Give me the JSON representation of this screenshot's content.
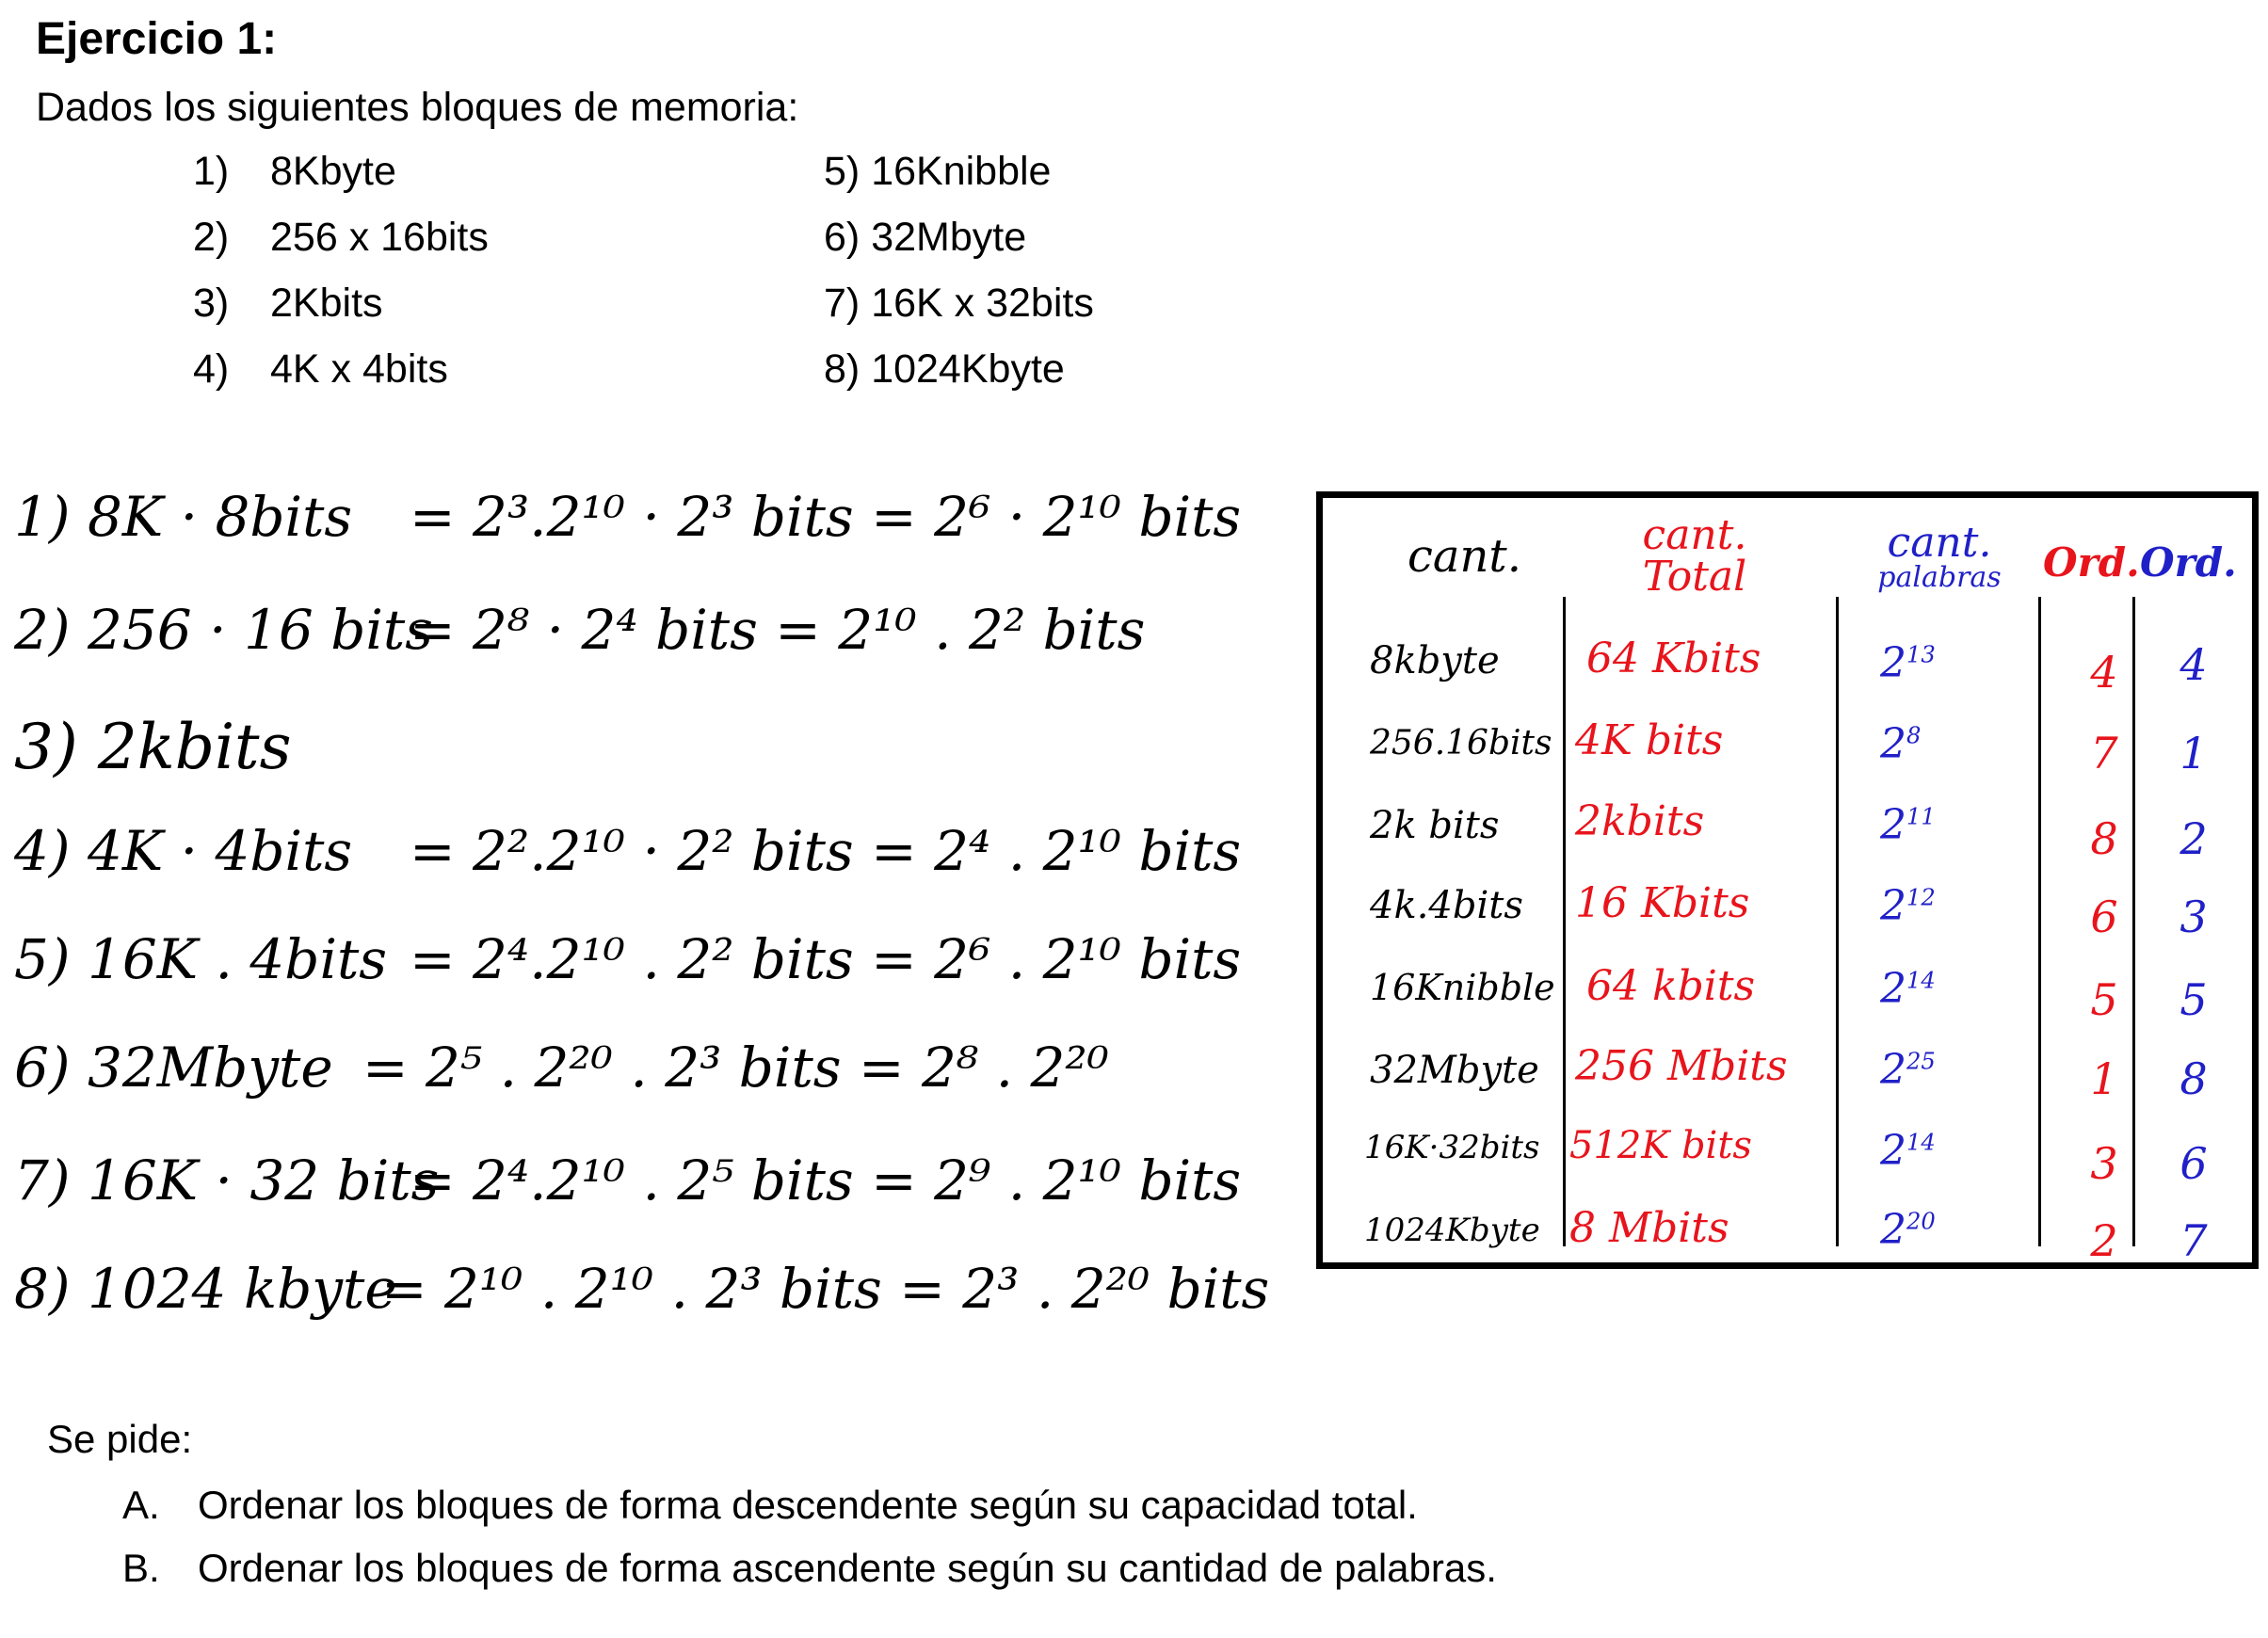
{
  "header": {
    "title": "Ejercicio 1:",
    "intro": "Dados los siguientes bloques de memoria:"
  },
  "blocks": [
    {
      "num": "1)",
      "label": "8Kbyte"
    },
    {
      "num": "2)",
      "label": "256 x 16bits"
    },
    {
      "num": "3)",
      "label": "2Kbits"
    },
    {
      "num": "4)",
      "label": "4K x 4bits"
    },
    {
      "num": "5)",
      "label": "16Knibble"
    },
    {
      "num": "6)",
      "label": "32Mbyte"
    },
    {
      "num": "7)",
      "label": "16K x 32bits"
    },
    {
      "num": "8)",
      "label": "1024Kbyte"
    }
  ],
  "handwritten": [
    {
      "lhs": "1) 8K · 8bits",
      "rhs": "= 2³.2¹⁰ · 2³ bits = 2⁶ · 2¹⁰ bits"
    },
    {
      "lhs": "2) 256 · 16 bits",
      "rhs": "= 2⁸ · 2⁴ bits = 2¹⁰ . 2² bits"
    },
    {
      "lhs": "3) 2kbits",
      "rhs": ""
    },
    {
      "lhs": "4) 4K · 4bits",
      "rhs": "= 2².2¹⁰ · 2² bits = 2⁴ . 2¹⁰ bits"
    },
    {
      "lhs": "5) 16K . 4bits",
      "rhs": "= 2⁴.2¹⁰ . 2² bits = 2⁶ . 2¹⁰ bits"
    },
    {
      "lhs": "6) 32Mbyte",
      "rhs": "= 2⁵ . 2²⁰ . 2³ bits = 2⁸ . 2²⁰"
    },
    {
      "lhs": "7) 16K · 32 bits",
      "rhs": "= 2⁴.2¹⁰ . 2⁵ bits = 2⁹ . 2¹⁰ bits"
    },
    {
      "lhs": "8) 1024 kbyte",
      "rhs": "= 2¹⁰ . 2¹⁰ . 2³ bits = 2³ . 2²⁰ bits"
    }
  ],
  "table": {
    "headers": {
      "cant": "cant.",
      "total_1": "cant.",
      "total_2": "Total",
      "words_1": "cant.",
      "words_2": "palabras",
      "ord1": "Ord.",
      "ord2": "Ord."
    },
    "rows": [
      {
        "name": "8kbyte",
        "total": "64 Kbits",
        "words_base": "2",
        "words_exp": "13",
        "ord1": "4",
        "ord2": "4"
      },
      {
        "name": "256.16bits",
        "total": "4K bits",
        "words_base": "2",
        "words_exp": "8",
        "ord1": "7",
        "ord2": "1"
      },
      {
        "name": "2k bits",
        "total": "2kbits",
        "words_base": "2",
        "words_exp": "11",
        "ord1": "8",
        "ord2": "2"
      },
      {
        "name": "4k.4bits",
        "total": "16 Kbits",
        "words_base": "2",
        "words_exp": "12",
        "ord1": "6",
        "ord2": "3"
      },
      {
        "name": "16Knibble",
        "total": "64 kbits",
        "words_base": "2",
        "words_exp": "14",
        "ord1": "5",
        "ord2": "5"
      },
      {
        "name": "32Mbyte",
        "total": "256 Mbits",
        "words_base": "2",
        "words_exp": "25",
        "ord1": "1",
        "ord2": "8"
      },
      {
        "name": "16K·32bits",
        "total": "512K bits",
        "words_base": "2",
        "words_exp": "14",
        "ord1": "3",
        "ord2": "6"
      },
      {
        "name": "1024Kbyte",
        "total": "8 Mbits",
        "words_base": "2",
        "words_exp": "20",
        "ord1": "2",
        "ord2": "7"
      }
    ]
  },
  "footer": {
    "se_pide": "Se pide:",
    "items": [
      {
        "letter": "A.",
        "text": "Ordenar los bloques de forma descendente según su capacidad total."
      },
      {
        "letter": "B.",
        "text": "Ordenar los bloques de forma ascendente según su cantidad de palabras."
      }
    ]
  },
  "colors": {
    "red": "#e8141c",
    "blue": "#2020c8"
  }
}
